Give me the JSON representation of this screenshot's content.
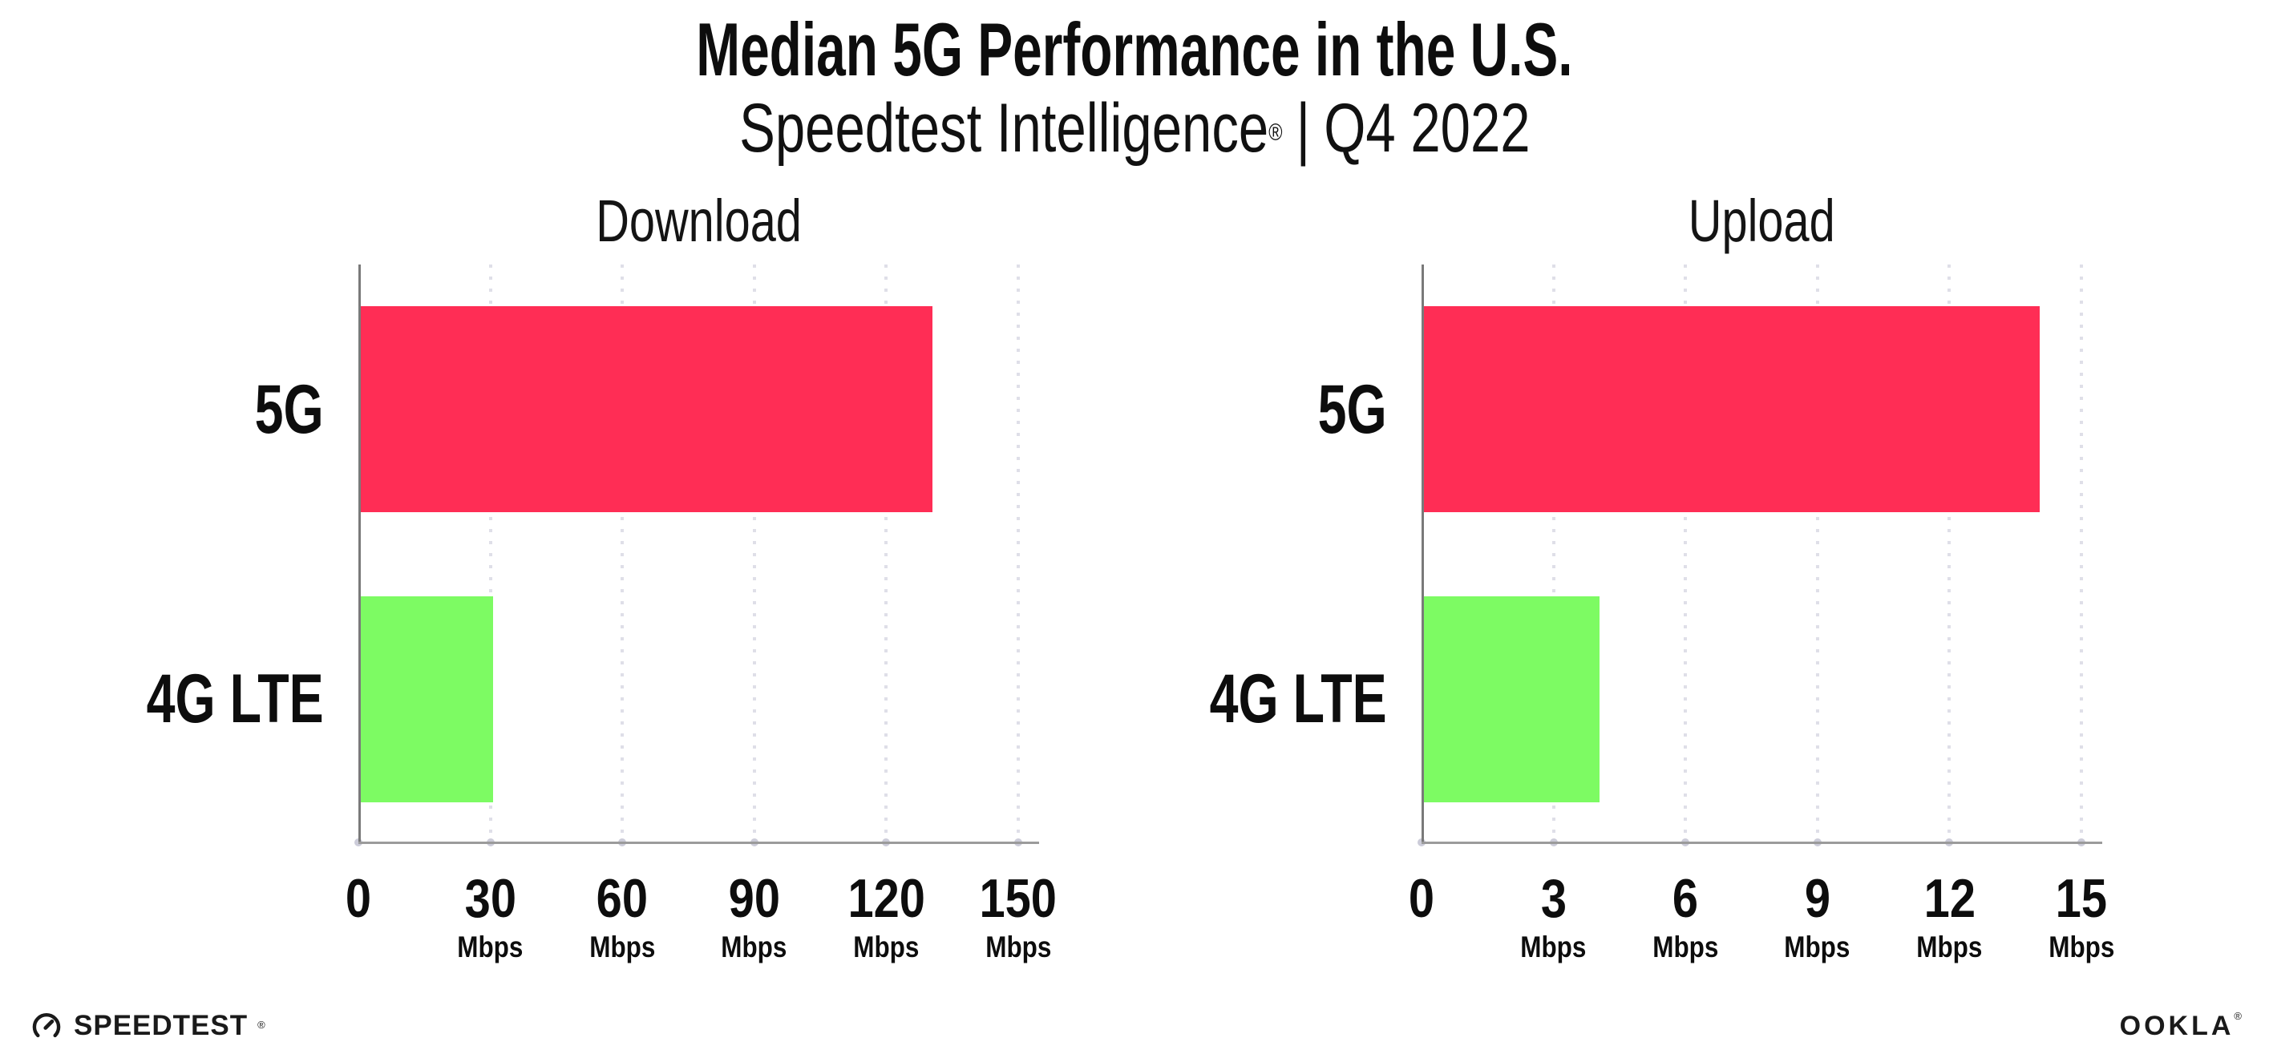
{
  "header": {
    "title": "Median 5G Performance in the U.S.",
    "subtitle": {
      "product": "Speedtest Intelligence",
      "registered_mark": "®",
      "separator": "|",
      "period": "Q4 2022"
    }
  },
  "chart_data": [
    {
      "type": "bar",
      "orientation": "horizontal",
      "title": "Download",
      "categories": [
        "5G",
        "4G LTE"
      ],
      "values": [
        130,
        30
      ],
      "unit": "Mbps",
      "xlim": [
        0,
        150
      ],
      "xticks": [
        0,
        30,
        60,
        90,
        120,
        150
      ],
      "bar_colors": [
        "#FF2D55",
        "#7DFB63"
      ],
      "grid": "dotted-vertical",
      "legend": "none"
    },
    {
      "type": "bar",
      "orientation": "horizontal",
      "title": "Upload",
      "categories": [
        "5G",
        "4G LTE"
      ],
      "values": [
        14,
        4
      ],
      "unit": "Mbps",
      "xlim": [
        0,
        15
      ],
      "xticks": [
        0,
        3,
        6,
        9,
        12,
        15
      ],
      "bar_colors": [
        "#FF2D55",
        "#7DFB63"
      ],
      "grid": "dotted-vertical",
      "legend": "none"
    }
  ],
  "footer": {
    "speedtest_wordmark": "SPEEDTEST",
    "speedtest_mark": "®",
    "ookla_wordmark": "OOKLA",
    "ookla_mark": "®"
  },
  "colors": {
    "bar_5g": "#FF2D55",
    "bar_4g_lte": "#7DFB63",
    "axis_line": "#9B9B9B",
    "grid_dots": "#DFDFE8",
    "text": "#0D0D0D",
    "background": "#FFFFFF"
  }
}
